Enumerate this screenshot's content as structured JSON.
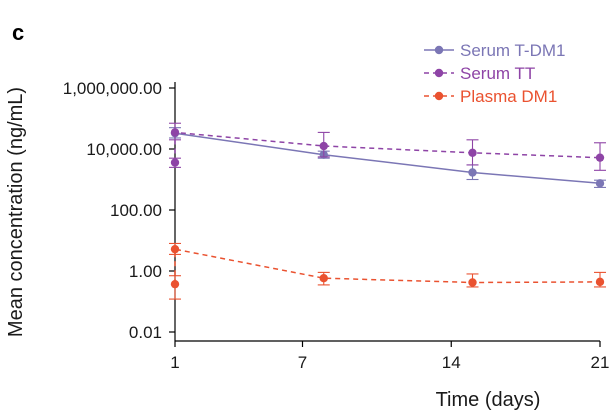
{
  "chart_data": {
    "type": "line",
    "panel_label": "c",
    "xlabel": "Time (days)",
    "ylabel": "Mean concentration (ng/mL)",
    "y_scale": "log",
    "ylim": [
      0.005,
      1000000
    ],
    "xlim": [
      1,
      21
    ],
    "x_ticks": [
      1,
      7,
      14,
      21
    ],
    "x_tick_labels": [
      "1",
      "7",
      "14",
      "21"
    ],
    "y_ticks": [
      0.01,
      1,
      100,
      10000,
      1000000
    ],
    "y_tick_labels": [
      "0.01",
      "1.00",
      "100.00",
      "10,000.00",
      "1,000,000.00"
    ],
    "grid": false,
    "legend_position": "top-right",
    "series": [
      {
        "name": "Serum T-DM1",
        "color": "#7b76b5",
        "line_style": "solid",
        "marker": "circle",
        "points": [
          {
            "x": 1,
            "y": 33000,
            "err_low": 23000,
            "err_high": 50000
          },
          {
            "x": 8,
            "y": 6500,
            "err_low": 5000,
            "err_high": 8500
          },
          {
            "x": 15,
            "y": 1700,
            "err_low": 1000,
            "err_high": 3000
          },
          {
            "x": 21,
            "y": 750,
            "err_low": 550,
            "err_high": 950
          }
        ]
      },
      {
        "name": "Serum TT",
        "color": "#8e44a6",
        "line_style": "dashed",
        "marker": "circle",
        "points": [
          {
            "x": 1,
            "y": 3600,
            "err_low": 2500,
            "err_high": 5000
          },
          {
            "x": 1,
            "y": 35000,
            "err_low": 20000,
            "err_high": 70000
          },
          {
            "x": 8,
            "y": 12500,
            "err_low": 5500,
            "err_high": 35000
          },
          {
            "x": 15,
            "y": 7500,
            "err_low": 3000,
            "err_high": 20000
          },
          {
            "x": 21,
            "y": 5200,
            "err_low": 2000,
            "err_high": 16000
          }
        ]
      },
      {
        "name": "Plasma DM1",
        "color": "#ea5230",
        "line_style": "dashed",
        "marker": "circle",
        "points": [
          {
            "x": 1,
            "y": 0.37,
            "err_low": 0.12,
            "err_high": 0.7
          },
          {
            "x": 1,
            "y": 5.2,
            "err_low": 3.5,
            "err_high": 8
          },
          {
            "x": 8,
            "y": 0.58,
            "err_low": 0.35,
            "err_high": 0.9
          },
          {
            "x": 15,
            "y": 0.42,
            "err_low": 0.3,
            "err_high": 0.8
          },
          {
            "x": 21,
            "y": 0.44,
            "err_low": 0.3,
            "err_high": 0.9
          }
        ]
      }
    ]
  }
}
